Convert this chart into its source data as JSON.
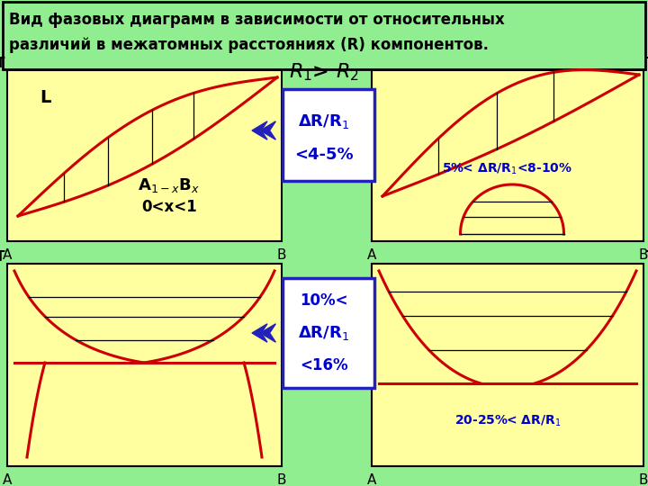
{
  "bg_outer": "#90ee90",
  "bg_inner": "#ffffa0",
  "line_color": "#cc0000",
  "text_black": "#000000",
  "text_blue": "#0000cc",
  "arrow_color": "#2222bb",
  "box_border": "#2222bb",
  "title_line1": "Вид фазовых диаграмм в зависимости от относительных",
  "title_line2": "различий в межатомных расстояниях (R) компонентов.",
  "r1r2_label": "$R_1$> $R_2$",
  "top_box_line1": "ΔR/R$_1$",
  "top_box_line2": "<4-5%",
  "bot_box_line1": "10%<",
  "bot_box_line2": "ΔR/R$_1$",
  "bot_box_line3": "<16%",
  "tr_label": "5%< ΔR/R$_1$<8-10%",
  "br_label": "20-25%< ΔR/R$_1$",
  "tl_label_L": "L",
  "tl_formula1": "A$_{1-x}$B$_x$",
  "tl_formula2": "0<x<1"
}
